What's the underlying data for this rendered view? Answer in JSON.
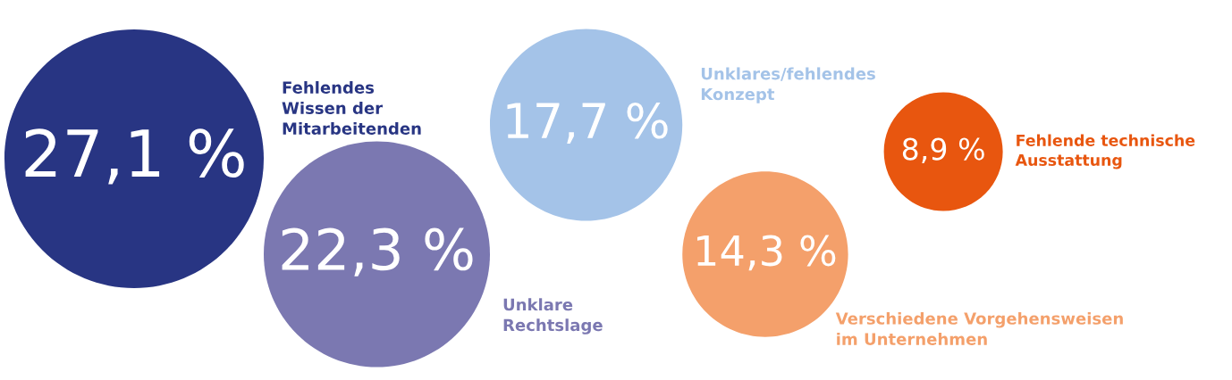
{
  "chart_data": {
    "type": "other",
    "categories": [
      "Fehlendes\nWissen der\nMitarbeitenden",
      "Unklare\nRechtslage",
      "Unklares/fehlendes\nKonzept",
      "Verschiedene Vorgehensweisen\nim Unternehmen",
      "Fehlende technische\nAusstattung"
    ],
    "values": [
      27.1,
      22.3,
      17.7,
      14.3,
      8.9
    ],
    "value_labels": [
      "27,1 %",
      "22,3 %",
      "17,7 %",
      "14,3 %",
      "8,9 %"
    ],
    "colors": [
      "#283583",
      "#7b78b1",
      "#a4c3e8",
      "#f4a06b",
      "#e8560f"
    ]
  }
}
